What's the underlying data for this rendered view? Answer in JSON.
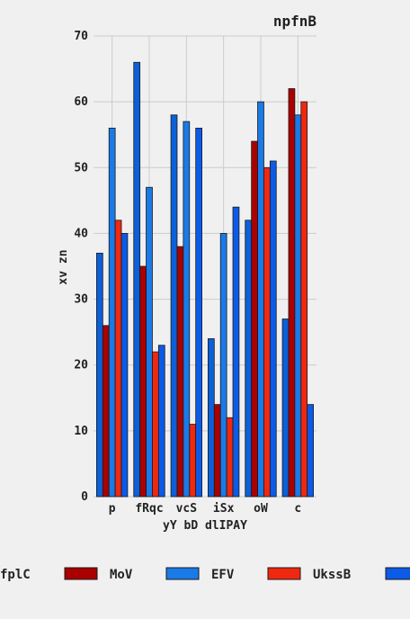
{
  "chart_data": {
    "type": "bar",
    "title": "npfnB",
    "xlabel": "yY bD dlIPAY",
    "ylabel": "xv  zn",
    "categories": [
      "p",
      "fRqc",
      "vcS",
      "iSx",
      "oW",
      "c"
    ],
    "ylim": [
      0,
      70
    ],
    "yticks": [
      0,
      10,
      20,
      30,
      40,
      50,
      60,
      70
    ],
    "grid": true,
    "legend_position": "bottom",
    "series": [
      {
        "name": "fplC",
        "color": "#0c60d8",
        "values": [
          37,
          66,
          58,
          24,
          42,
          27
        ]
      },
      {
        "name": "MoV",
        "color": "#aa0000",
        "values": [
          26,
          35,
          38,
          14,
          54,
          62
        ]
      },
      {
        "name": "EFV",
        "color": "#1a7ae8",
        "values": [
          56,
          47,
          57,
          40,
          60,
          58
        ]
      },
      {
        "name": "UkssB",
        "color": "#f02810",
        "values": [
          42,
          22,
          11,
          12,
          50,
          60
        ]
      },
      {
        "name": "",
        "color": "#0c5ae8",
        "values": [
          40,
          23,
          56,
          44,
          51,
          14
        ]
      }
    ]
  }
}
